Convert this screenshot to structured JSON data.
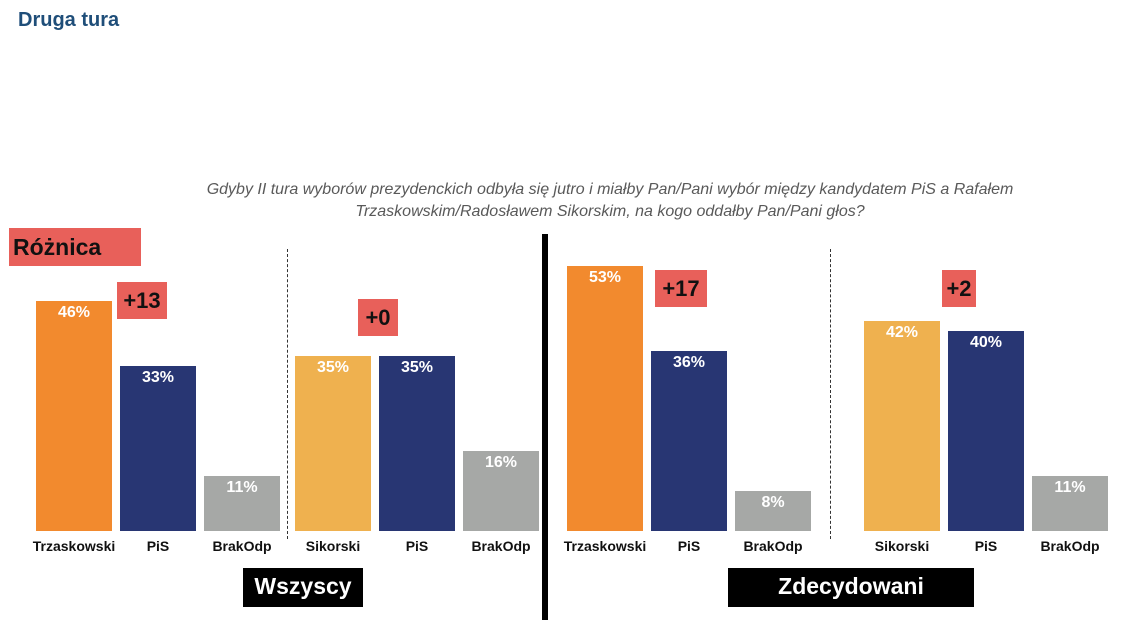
{
  "page_title": "Druga tura",
  "question_line1": "Gdyby II tura wyborów prezydenckich odbyła się jutro i miałby Pan/Pani wybór między kandydatem PiS a Rafałem",
  "question_line2": "Trzaskowskim/Radosławem Sikorskim, na kogo oddałby Pan/Pani głos?",
  "difference_legend": "Różnica",
  "colors": {
    "trzaskowski": "#f28a2e",
    "sikorski": "#efb14f",
    "pis": "#283673",
    "brak": "#a6a8a6",
    "difference_box": "#e8605a"
  },
  "chart_data": [
    {
      "type": "bar",
      "group": "Wszyscy",
      "categories": [
        "Trzaskowski",
        "PiS",
        "BrakOdp"
      ],
      "values": [
        46,
        33,
        11
      ],
      "value_labels": [
        "46%",
        "33%",
        "11%"
      ],
      "difference": "+13",
      "ylim": [
        0,
        60
      ]
    },
    {
      "type": "bar",
      "group": "Wszyscy",
      "categories": [
        "Sikorski",
        "PiS",
        "BrakOdp"
      ],
      "values": [
        35,
        35,
        16
      ],
      "value_labels": [
        "35%",
        "35%",
        "16%"
      ],
      "difference": "+0",
      "ylim": [
        0,
        60
      ]
    },
    {
      "type": "bar",
      "group": "Zdecydowani",
      "categories": [
        "Trzaskowski",
        "PiS",
        "BrakOdp"
      ],
      "values": [
        53,
        36,
        8
      ],
      "value_labels": [
        "53%",
        "36%",
        "8%"
      ],
      "difference": "+17",
      "ylim": [
        0,
        60
      ]
    },
    {
      "type": "bar",
      "group": "Zdecydowani",
      "categories": [
        "Sikorski",
        "PiS",
        "BrakOdp"
      ],
      "values": [
        42,
        40,
        11
      ],
      "value_labels": [
        "42%",
        "40%",
        "11%"
      ],
      "difference": "+2",
      "ylim": [
        0,
        60
      ]
    }
  ],
  "groups": [
    "Wszyscy",
    "Zdecydowani"
  ]
}
